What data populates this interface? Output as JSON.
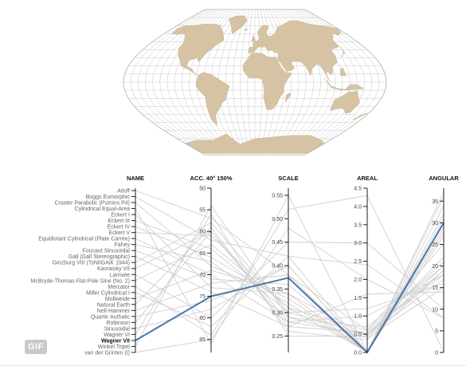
{
  "map": {
    "land_color": "#d6c3a3",
    "grid_color": "#c8c8c8"
  },
  "badge": {
    "label": "GIF"
  },
  "chart_data": {
    "type": "parallel-coordinates",
    "selected": "Wagner VII",
    "highlight_color": "#4a77a8",
    "axes": [
      {
        "name": "NAME",
        "type": "categorical"
      },
      {
        "name": "ACC. 40° 150%",
        "type": "numeric",
        "range": [
          50,
          88
        ],
        "reversed": true,
        "ticks": [
          50,
          55,
          60,
          65,
          70,
          75,
          80,
          85
        ]
      },
      {
        "name": "SCALE",
        "type": "numeric",
        "range": [
          0.215,
          0.565
        ],
        "ticks": [
          0.25,
          0.3,
          0.35,
          0.4,
          0.45,
          0.5,
          0.55
        ]
      },
      {
        "name": "AREAL",
        "type": "numeric",
        "range": [
          0,
          4.5
        ],
        "ticks": [
          0,
          0.5,
          1.0,
          1.5,
          2.0,
          2.5,
          3.0,
          3.5,
          4.0,
          4.5
        ]
      },
      {
        "name": "ANGULAR",
        "type": "numeric",
        "range": [
          0,
          38
        ],
        "ticks": [
          0,
          5,
          10,
          15,
          20,
          25,
          30,
          35
        ]
      }
    ],
    "projections": [
      {
        "name": "Aitoff",
        "acc": 57,
        "scale": 0.38,
        "areal": 0.6,
        "angular": 25
      },
      {
        "name": "Boggs Eumorphic",
        "acc": 62,
        "scale": 0.42,
        "areal": 0.01,
        "angular": 28
      },
      {
        "name": "Craster Parabolic (Putnins P4)",
        "acc": 68,
        "scale": 0.33,
        "areal": 0.01,
        "angular": 31
      },
      {
        "name": "Cylindrical Equal-Area",
        "acc": 86,
        "scale": 0.55,
        "areal": 0.02,
        "angular": 37
      },
      {
        "name": "Eckert I",
        "acc": 73,
        "scale": 0.34,
        "areal": 0.45,
        "angular": 20
      },
      {
        "name": "Eckert III",
        "acc": 64,
        "scale": 0.3,
        "areal": 0.5,
        "angular": 22
      },
      {
        "name": "Eckert IV",
        "acc": 66,
        "scale": 0.32,
        "areal": 0.01,
        "angular": 28
      },
      {
        "name": "Eckert V",
        "acc": 61,
        "scale": 0.31,
        "areal": 0.6,
        "angular": 21
      },
      {
        "name": "Equidistant Cylindrical (Plate Carrée)",
        "acc": 70,
        "scale": 0.28,
        "areal": 1.0,
        "angular": 18
      },
      {
        "name": "Fahey",
        "acc": 67,
        "scale": 0.29,
        "areal": 0.7,
        "angular": 20
      },
      {
        "name": "Foucaut Sinusoidal",
        "acc": 71,
        "scale": 0.36,
        "areal": 0.01,
        "angular": 30
      },
      {
        "name": "Gall (Gall Stereographic)",
        "acc": 74,
        "scale": 0.27,
        "areal": 1.6,
        "angular": 14
      },
      {
        "name": "Ginzburg VIII (TsNIIGAiK 1944)",
        "acc": 58,
        "scale": 0.3,
        "areal": 1.2,
        "angular": 16
      },
      {
        "name": "Kavraisky VII",
        "acc": 60,
        "scale": 0.27,
        "areal": 0.55,
        "angular": 18
      },
      {
        "name": "Larrivée",
        "acc": 80,
        "scale": 0.45,
        "areal": 3.0,
        "angular": 10
      },
      {
        "name": "McBryde-Thomas Flat-Pole Sine (No. 2)",
        "acc": 63,
        "scale": 0.31,
        "areal": 0.01,
        "angular": 27
      },
      {
        "name": "Mercator",
        "acc": 84,
        "scale": 0.52,
        "areal": 4.3,
        "angular": 0.2
      },
      {
        "name": "Miller Cylindrical I",
        "acc": 82,
        "scale": 0.42,
        "areal": 2.4,
        "angular": 8
      },
      {
        "name": "Mollweide",
        "acc": 69,
        "scale": 0.34,
        "areal": 0.01,
        "angular": 32
      },
      {
        "name": "Natural Earth",
        "acc": 59,
        "scale": 0.26,
        "areal": 0.35,
        "angular": 19
      },
      {
        "name": "Nell-Hammer",
        "acc": 72,
        "scale": 0.38,
        "areal": 0.01,
        "angular": 29
      },
      {
        "name": "Quartic Authalic",
        "acc": 76,
        "scale": 0.4,
        "areal": 0.01,
        "angular": 34
      },
      {
        "name": "Robinson",
        "acc": 60,
        "scale": 0.28,
        "areal": 0.5,
        "angular": 19
      },
      {
        "name": "Sinusoidal",
        "acc": 78,
        "scale": 0.4,
        "areal": 0.01,
        "angular": 36
      },
      {
        "name": "Wagner VI",
        "acc": 56,
        "scale": 0.25,
        "areal": 0.45,
        "angular": 17
      },
      {
        "name": "Wagner VII",
        "acc": 75,
        "scale": 0.374,
        "areal": 0.0,
        "angular": 30
      },
      {
        "name": "Winkel Tripel",
        "acc": 54,
        "scale": 0.29,
        "areal": 0.4,
        "angular": 15
      },
      {
        "name": "van der Grinten (I)",
        "acc": 85,
        "scale": 0.48,
        "areal": 2.0,
        "angular": 8
      }
    ]
  }
}
